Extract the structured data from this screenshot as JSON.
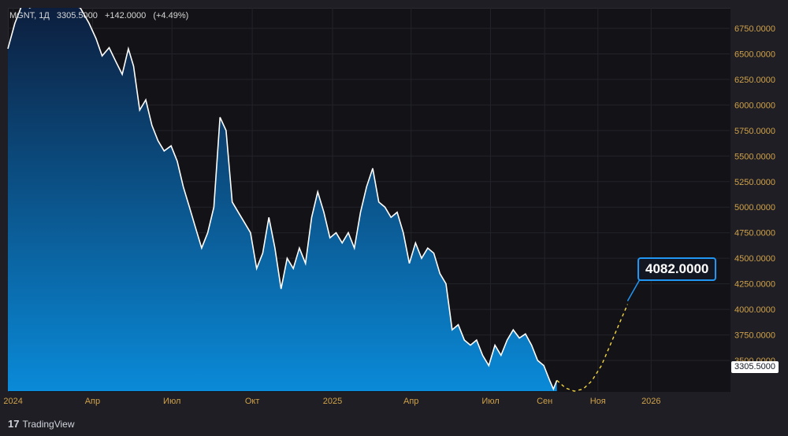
{
  "legend": {
    "symbol": "MGNT, 1Д",
    "last": "3305.5000",
    "change": "+142.0000",
    "change_pct": "(+4.49%)"
  },
  "branding": {
    "logo_glyph": "17",
    "name": "TradingView"
  },
  "price_tag": "3305.5000",
  "target_label": "4082.0000",
  "colors": {
    "line": "#ffffff",
    "area_top": "#0c1d3c",
    "area_bottom": "#0a8ad8",
    "axis_text_y": "#d0a24a",
    "axis_text_x": "#d0a24a",
    "grid": "#23232a",
    "projection": "#f5d742",
    "target_border": "#2196f3"
  },
  "chart_data": {
    "type": "area",
    "title": "",
    "xlabel": "",
    "ylabel": "",
    "ylim": [
      3200,
      6950
    ],
    "y_ticks": [
      "3500.0000",
      "3750.0000",
      "4000.0000",
      "4250.0000",
      "4500.0000",
      "4750.0000",
      "5000.0000",
      "5250.0000",
      "5500.0000",
      "5750.0000",
      "6000.0000",
      "6250.0000",
      "6500.0000",
      "6750.0000"
    ],
    "y_tick_values": [
      3500,
      3750,
      4000,
      4250,
      4500,
      4750,
      5000,
      5250,
      5500,
      5750,
      6000,
      6250,
      6500,
      6750
    ],
    "x_ticks": [
      {
        "label": "2024",
        "date": "2024-01-01"
      },
      {
        "label": "Апр",
        "date": "2024-04-01"
      },
      {
        "label": "Июл",
        "date": "2024-07-01"
      },
      {
        "label": "Окт",
        "date": "2024-10-01"
      },
      {
        "label": "2025",
        "date": "2025-01-01"
      },
      {
        "label": "Апр",
        "date": "2025-04-01"
      },
      {
        "label": "Июл",
        "date": "2025-07-01"
      },
      {
        "label": "Сен",
        "date": "2025-09-01"
      },
      {
        "label": "Ноя",
        "date": "2025-11-01"
      },
      {
        "label": "2026",
        "date": "2026-01-01"
      }
    ],
    "series": [
      {
        "values": [
          [
            "2023-12-25",
            6550
          ],
          [
            "2024-01-03",
            6800
          ],
          [
            "2024-01-12",
            7050
          ],
          [
            "2024-01-20",
            6950
          ],
          [
            "2024-02-01",
            7100
          ],
          [
            "2024-02-15",
            7050
          ],
          [
            "2024-03-01",
            7000
          ],
          [
            "2024-03-18",
            6950
          ],
          [
            "2024-03-28",
            6800
          ],
          [
            "2024-04-05",
            6650
          ],
          [
            "2024-04-12",
            6480
          ],
          [
            "2024-04-20",
            6560
          ],
          [
            "2024-04-28",
            6420
          ],
          [
            "2024-05-05",
            6300
          ],
          [
            "2024-05-12",
            6550
          ],
          [
            "2024-05-18",
            6380
          ],
          [
            "2024-05-25",
            5950
          ],
          [
            "2024-06-01",
            6050
          ],
          [
            "2024-06-08",
            5800
          ],
          [
            "2024-06-15",
            5650
          ],
          [
            "2024-06-22",
            5550
          ],
          [
            "2024-06-30",
            5600
          ],
          [
            "2024-07-07",
            5450
          ],
          [
            "2024-07-14",
            5200
          ],
          [
            "2024-07-21",
            5000
          ],
          [
            "2024-07-28",
            4800
          ],
          [
            "2024-08-04",
            4600
          ],
          [
            "2024-08-11",
            4750
          ],
          [
            "2024-08-18",
            5000
          ],
          [
            "2024-08-25",
            5880
          ],
          [
            "2024-09-01",
            5750
          ],
          [
            "2024-09-08",
            5050
          ],
          [
            "2024-09-15",
            4950
          ],
          [
            "2024-09-22",
            4850
          ],
          [
            "2024-09-29",
            4750
          ],
          [
            "2024-10-06",
            4400
          ],
          [
            "2024-10-13",
            4550
          ],
          [
            "2024-10-20",
            4900
          ],
          [
            "2024-10-27",
            4600
          ],
          [
            "2024-11-03",
            4200
          ],
          [
            "2024-11-10",
            4500
          ],
          [
            "2024-11-17",
            4400
          ],
          [
            "2024-11-24",
            4600
          ],
          [
            "2024-12-01",
            4450
          ],
          [
            "2024-12-08",
            4900
          ],
          [
            "2024-12-15",
            5150
          ],
          [
            "2024-12-22",
            4950
          ],
          [
            "2024-12-29",
            4700
          ],
          [
            "2025-01-05",
            4750
          ],
          [
            "2025-01-12",
            4650
          ],
          [
            "2025-01-19",
            4750
          ],
          [
            "2025-01-26",
            4600
          ],
          [
            "2025-02-02",
            4950
          ],
          [
            "2025-02-09",
            5200
          ],
          [
            "2025-02-16",
            5380
          ],
          [
            "2025-02-23",
            5050
          ],
          [
            "2025-03-02",
            5000
          ],
          [
            "2025-03-09",
            4900
          ],
          [
            "2025-03-16",
            4950
          ],
          [
            "2025-03-23",
            4750
          ],
          [
            "2025-03-30",
            4450
          ],
          [
            "2025-04-06",
            4650
          ],
          [
            "2025-04-13",
            4500
          ],
          [
            "2025-04-20",
            4600
          ],
          [
            "2025-04-27",
            4550
          ],
          [
            "2025-05-04",
            4350
          ],
          [
            "2025-05-11",
            4250
          ],
          [
            "2025-05-18",
            3800
          ],
          [
            "2025-05-25",
            3850
          ],
          [
            "2025-06-01",
            3700
          ],
          [
            "2025-06-08",
            3650
          ],
          [
            "2025-06-15",
            3700
          ],
          [
            "2025-06-22",
            3550
          ],
          [
            "2025-06-29",
            3450
          ],
          [
            "2025-07-06",
            3650
          ],
          [
            "2025-07-13",
            3550
          ],
          [
            "2025-07-20",
            3700
          ],
          [
            "2025-07-27",
            3800
          ],
          [
            "2025-08-03",
            3720
          ],
          [
            "2025-08-10",
            3760
          ],
          [
            "2025-08-17",
            3650
          ],
          [
            "2025-08-24",
            3500
          ],
          [
            "2025-08-31",
            3450
          ],
          [
            "2025-09-07",
            3300
          ],
          [
            "2025-09-11",
            3220
          ],
          [
            "2025-09-15",
            3305.5
          ]
        ]
      },
      {
        "values": [
          [
            "2025-09-15",
            3305.5
          ],
          [
            "2025-09-25",
            3230
          ],
          [
            "2025-10-05",
            3200
          ],
          [
            "2025-10-15",
            3220
          ],
          [
            "2025-10-25",
            3300
          ],
          [
            "2025-11-05",
            3450
          ],
          [
            "2025-11-15",
            3650
          ],
          [
            "2025-11-25",
            3850
          ],
          [
            "2025-12-05",
            4050
          ]
        ]
      }
    ],
    "annotations": [
      {
        "type": "price_label",
        "date": "2025-12-05",
        "value": 4082,
        "text": "4082.0000"
      },
      {
        "type": "last_price",
        "value": 3305.5,
        "text": "3305.5000"
      }
    ],
    "grid": true,
    "legend": "top-left"
  }
}
